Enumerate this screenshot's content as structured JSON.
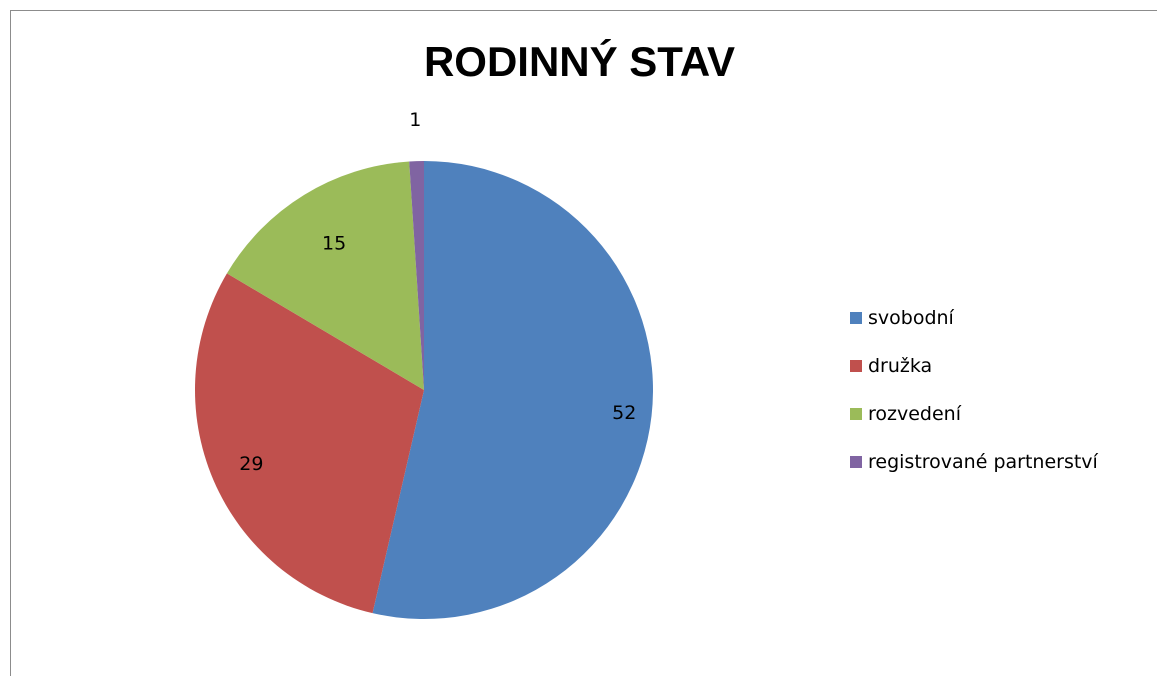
{
  "chart_data": {
    "type": "pie",
    "title": "RODINNÝ STAV",
    "categories": [
      "svobodní",
      "družka",
      "rozvedení",
      "registrované partnerství"
    ],
    "values": [
      52,
      29,
      15,
      1
    ],
    "colors": [
      "#4f81bd",
      "#c0504d",
      "#9bbb59",
      "#8064a2"
    ],
    "data_labels": [
      "52",
      "29",
      "15",
      "1"
    ],
    "legend_position": "right",
    "start_angle": "top",
    "direction": "clockwise"
  }
}
